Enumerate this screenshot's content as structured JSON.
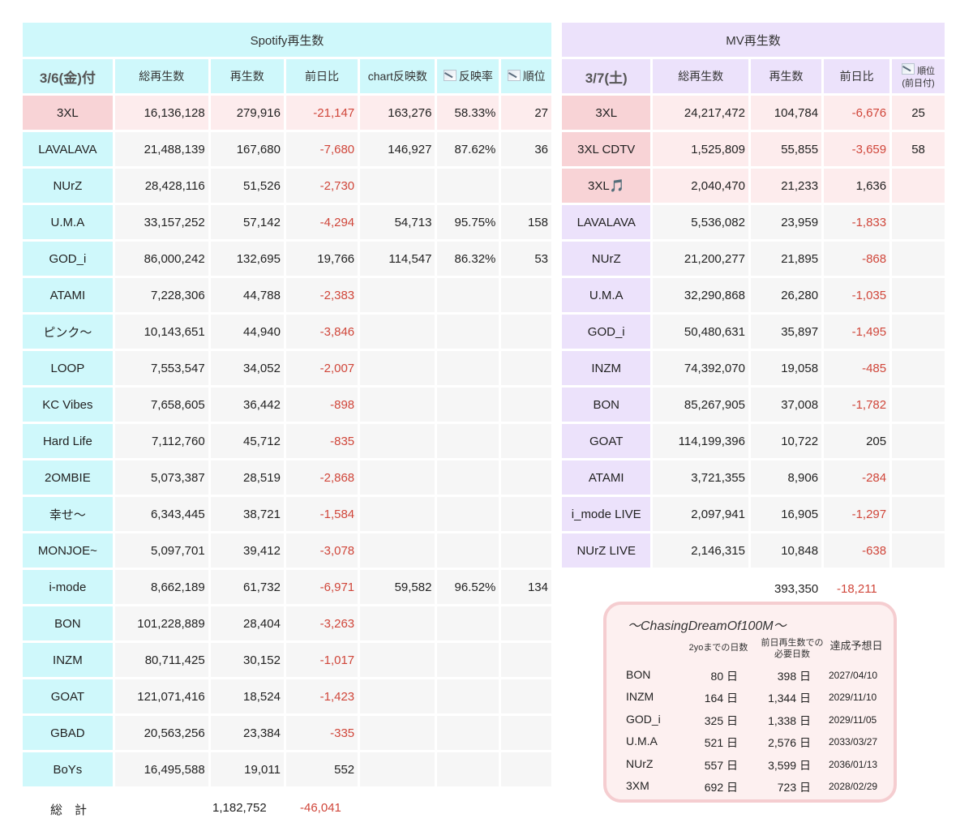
{
  "spotify": {
    "title": "Spotify再生数",
    "headers": {
      "date": "3/6(金)付",
      "total": "総再生数",
      "plays": "再生数",
      "diff": "前日比",
      "chart_count": "chart反映数",
      "rate": "反映率",
      "rank": "順位"
    },
    "rows": [
      {
        "name": "3XL",
        "total": "16,136,128",
        "plays": "279,916",
        "diff": "-21,147",
        "chart": "163,276",
        "rate": "58.33%",
        "rank": "27",
        "highlight": true
      },
      {
        "name": "LAVALAVA",
        "total": "21,488,139",
        "plays": "167,680",
        "diff": "-7,680",
        "chart": "146,927",
        "rate": "87.62%",
        "rank": "36"
      },
      {
        "name": "NUrZ",
        "total": "28,428,116",
        "plays": "51,526",
        "diff": "-2,730",
        "chart": "",
        "rate": "",
        "rank": ""
      },
      {
        "name": "U.M.A",
        "total": "33,157,252",
        "plays": "57,142",
        "diff": "-4,294",
        "chart": "54,713",
        "rate": "95.75%",
        "rank": "158"
      },
      {
        "name": "GOD_i",
        "total": "86,000,242",
        "plays": "132,695",
        "diff": "19,766",
        "chart": "114,547",
        "rate": "86.32%",
        "rank": "53"
      },
      {
        "name": "ATAMI",
        "total": "7,228,306",
        "plays": "44,788",
        "diff": "-2,383",
        "chart": "",
        "rate": "",
        "rank": ""
      },
      {
        "name": "ピンク～",
        "total": "10,143,651",
        "plays": "44,940",
        "diff": "-3,846",
        "chart": "",
        "rate": "",
        "rank": ""
      },
      {
        "name": "LOOP",
        "total": "7,553,547",
        "plays": "34,052",
        "diff": "-2,007",
        "chart": "",
        "rate": "",
        "rank": ""
      },
      {
        "name": "KC Vibes",
        "total": "7,658,605",
        "plays": "36,442",
        "diff": "-898",
        "chart": "",
        "rate": "",
        "rank": ""
      },
      {
        "name": "Hard Life",
        "total": "7,112,760",
        "plays": "45,712",
        "diff": "-835",
        "chart": "",
        "rate": "",
        "rank": ""
      },
      {
        "name": "2OMBIE",
        "total": "5,073,387",
        "plays": "28,519",
        "diff": "-2,868",
        "chart": "",
        "rate": "",
        "rank": ""
      },
      {
        "name": "幸せ～",
        "total": "6,343,445",
        "plays": "38,721",
        "diff": "-1,584",
        "chart": "",
        "rate": "",
        "rank": ""
      },
      {
        "name": "MONJOE~",
        "total": "5,097,701",
        "plays": "39,412",
        "diff": "-3,078",
        "chart": "",
        "rate": "",
        "rank": ""
      },
      {
        "name": "i-mode",
        "total": "8,662,189",
        "plays": "61,732",
        "diff": "-6,971",
        "chart": "59,582",
        "rate": "96.52%",
        "rank": "134"
      },
      {
        "name": "BON",
        "total": "101,228,889",
        "plays": "28,404",
        "diff": "-3,263",
        "chart": "",
        "rate": "",
        "rank": ""
      },
      {
        "name": "INZM",
        "total": "80,711,425",
        "plays": "30,152",
        "diff": "-1,017",
        "chart": "",
        "rate": "",
        "rank": ""
      },
      {
        "name": "GOAT",
        "total": "121,071,416",
        "plays": "18,524",
        "diff": "-1,423",
        "chart": "",
        "rate": "",
        "rank": ""
      },
      {
        "name": "GBAD",
        "total": "20,563,256",
        "plays": "23,384",
        "diff": "-335",
        "chart": "",
        "rate": "",
        "rank": ""
      },
      {
        "name": "BoYs",
        "total": "16,495,588",
        "plays": "19,011",
        "diff": "552",
        "chart": "",
        "rate": "",
        "rank": ""
      }
    ],
    "totals": {
      "label": "総　計",
      "plays": "1,182,752",
      "diff": "-46,041"
    }
  },
  "mv": {
    "title": "MV再生数",
    "headers": {
      "date": "3/7(土)",
      "total": "総再生数",
      "plays": "再生数",
      "diff": "前日比",
      "rank": "順位",
      "rank_sub": "(前日付)"
    },
    "rows": [
      {
        "name": "3XL",
        "total": "24,217,472",
        "plays": "104,784",
        "diff": "-6,676",
        "rank": "25",
        "highlight": true
      },
      {
        "name": "3XL CDTV",
        "total": "1,525,809",
        "plays": "55,855",
        "diff": "-3,659",
        "rank": "58",
        "highlight": true
      },
      {
        "name": "3XL🎵",
        "total": "2,040,470",
        "plays": "21,233",
        "diff": "1,636",
        "rank": "",
        "highlight": true
      },
      {
        "name": "LAVALAVA",
        "total": "5,536,082",
        "plays": "23,959",
        "diff": "-1,833",
        "rank": ""
      },
      {
        "name": "NUrZ",
        "total": "21,200,277",
        "plays": "21,895",
        "diff": "-868",
        "rank": ""
      },
      {
        "name": "U.M.A",
        "total": "32,290,868",
        "plays": "26,280",
        "diff": "-1,035",
        "rank": ""
      },
      {
        "name": "GOD_i",
        "total": "50,480,631",
        "plays": "35,897",
        "diff": "-1,495",
        "rank": ""
      },
      {
        "name": "INZM",
        "total": "74,392,070",
        "plays": "19,058",
        "diff": "-485",
        "rank": ""
      },
      {
        "name": "BON",
        "total": "85,267,905",
        "plays": "37,008",
        "diff": "-1,782",
        "rank": ""
      },
      {
        "name": "GOAT",
        "total": "114,199,396",
        "plays": "10,722",
        "diff": "205",
        "rank": ""
      },
      {
        "name": "ATAMI",
        "total": "3,721,355",
        "plays": "8,906",
        "diff": "-284",
        "rank": ""
      },
      {
        "name": "i_mode LIVE",
        "total": "2,097,941",
        "plays": "16,905",
        "diff": "-1,297",
        "rank": ""
      },
      {
        "name": "NUrZ LIVE",
        "total": "2,146,315",
        "plays": "10,848",
        "diff": "-638",
        "rank": ""
      }
    ],
    "totals": {
      "plays": "393,350",
      "diff": "-18,211"
    }
  },
  "chasing": {
    "title": "～ChasingDreamOf100M～",
    "headers": {
      "days": "2yoまでの日数",
      "needed": "前日再生数での必要日数",
      "date": "達成予想日"
    },
    "rows": [
      {
        "name": "BON",
        "days": "80 日",
        "needed": "398 日",
        "date": "2027/04/10"
      },
      {
        "name": "INZM",
        "days": "164 日",
        "needed": "1,344 日",
        "date": "2029/11/10"
      },
      {
        "name": "GOD_i",
        "days": "325 日",
        "needed": "1,338 日",
        "date": "2029/11/05"
      },
      {
        "name": "U.M.A",
        "days": "521 日",
        "needed": "2,576 日",
        "date": "2033/03/27"
      },
      {
        "name": "NUrZ",
        "days": "557 日",
        "needed": "3,599 日",
        "date": "2036/01/13"
      },
      {
        "name": "3XM",
        "days": "692 日",
        "needed": "723 日",
        "date": "2028/02/29"
      }
    ]
  },
  "colors": {
    "negative": "#d0463a",
    "spotify_bg": "#cff8fb",
    "mv_bg": "#ece2fb",
    "highlight": "#f8d3d6"
  },
  "icons": [
    "chart-down-icon"
  ]
}
